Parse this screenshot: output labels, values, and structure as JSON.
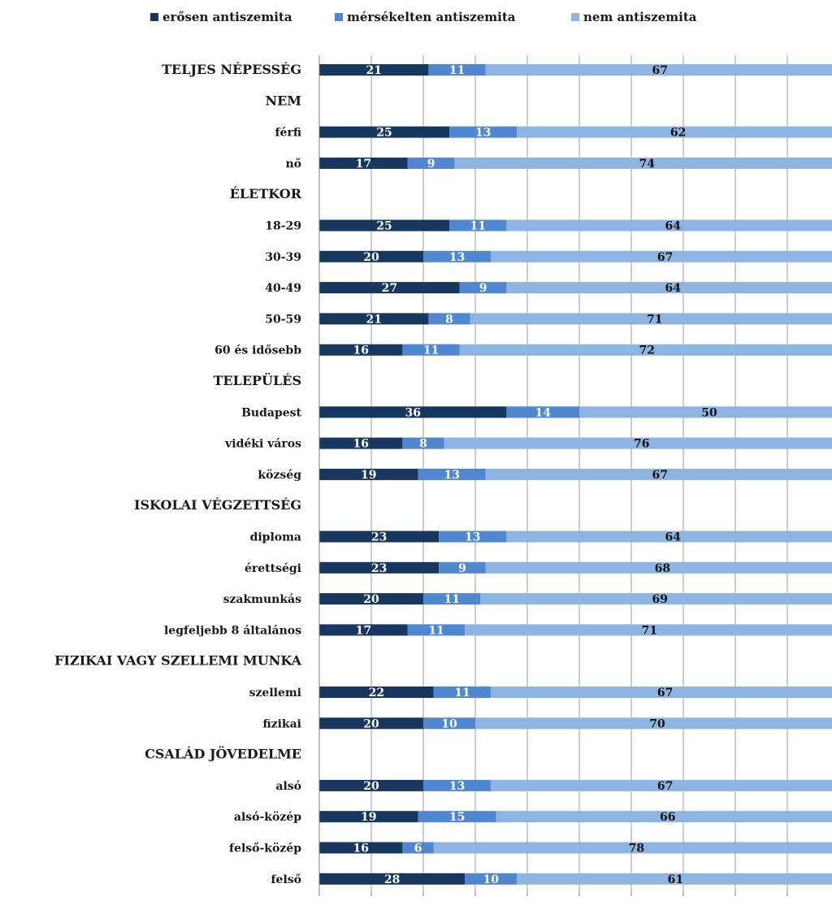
{
  "chart_data": {
    "type": "bar",
    "stacked": true,
    "orientation": "horizontal",
    "percent": true,
    "title": "",
    "xlabel": "",
    "ylabel": "",
    "xlim": [
      0,
      100
    ],
    "grid": true,
    "legend_position": "top",
    "colors": {
      "strong": "#17375e",
      "moderate": "#4f87d0",
      "none": "#8db4e2",
      "grid": "#9e9e9e",
      "text_dark": "#111111",
      "text_light": "#ffffff"
    },
    "series": [
      {
        "name": "erősen antiszemita",
        "key": "strong"
      },
      {
        "name": "mérsékelten antiszemita",
        "key": "moderate"
      },
      {
        "name": "nem antiszemita",
        "key": "none"
      }
    ],
    "rows": [
      {
        "label": "TELJES NÉPESSÉG",
        "header": true,
        "values": [
          21,
          11,
          67
        ]
      },
      {
        "label": "NEM",
        "header": true
      },
      {
        "label": "férfi",
        "values": [
          25,
          13,
          62
        ]
      },
      {
        "label": "nő",
        "values": [
          17,
          9,
          74
        ]
      },
      {
        "label": "ÉLETKOR",
        "header": true
      },
      {
        "label": "18-29",
        "values": [
          25,
          11,
          64
        ]
      },
      {
        "label": "30-39",
        "values": [
          20,
          13,
          67
        ]
      },
      {
        "label": "40-49",
        "values": [
          27,
          9,
          64
        ]
      },
      {
        "label": "50-59",
        "values": [
          21,
          8,
          71
        ]
      },
      {
        "label": "60 és idősebb",
        "values": [
          16,
          11,
          72
        ]
      },
      {
        "label": "TELEPÜLÉS",
        "header": true
      },
      {
        "label": "Budapest",
        "values": [
          36,
          14,
          50
        ]
      },
      {
        "label": "vidéki város",
        "values": [
          16,
          8,
          76
        ]
      },
      {
        "label": "község",
        "values": [
          19,
          13,
          67
        ]
      },
      {
        "label": "ISKOLAI VÉGZETTSÉG",
        "header": true
      },
      {
        "label": "diploma",
        "values": [
          23,
          13,
          64
        ]
      },
      {
        "label": "érettségi",
        "values": [
          23,
          9,
          68
        ]
      },
      {
        "label": "szakmunkás",
        "values": [
          20,
          11,
          69
        ]
      },
      {
        "label": "legfeljebb 8 általános",
        "values": [
          17,
          11,
          71
        ]
      },
      {
        "label": "FIZIKAI VAGY SZELLEMI  MUNKA",
        "header": true
      },
      {
        "label": "szellemi",
        "values": [
          22,
          11,
          67
        ]
      },
      {
        "label": "fizikai",
        "values": [
          20,
          10,
          70
        ]
      },
      {
        "label": "CSALÁD JÖVEDELME",
        "header": true
      },
      {
        "label": "alsó",
        "values": [
          20,
          13,
          67
        ]
      },
      {
        "label": "alsó-közép",
        "values": [
          19,
          15,
          66
        ]
      },
      {
        "label": "felső-közép",
        "values": [
          16,
          6,
          78
        ]
      },
      {
        "label": "felső",
        "values": [
          28,
          10,
          61
        ]
      }
    ]
  }
}
